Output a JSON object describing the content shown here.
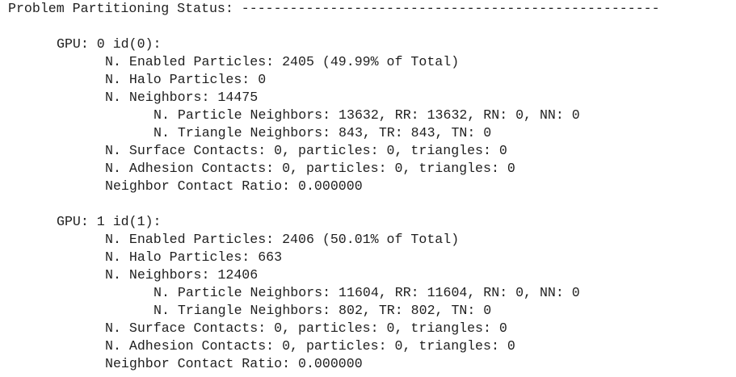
{
  "header": "Problem Partitioning Status: ----------------------------------------------------",
  "gpus": [
    {
      "label": "GPU: 0 id(0):",
      "items": [
        "N. Enabled Particles: 2405 (49.99% of Total)",
        "N. Halo Particles: 0",
        "N. Neighbors: 14475"
      ],
      "neighbor_details": [
        "N. Particle Neighbors: 13632, RR: 13632, RN: 0, NN: 0",
        "N. Triangle Neighbors: 843, TR: 843, TN: 0"
      ],
      "contacts": [
        "N. Surface Contacts: 0, particles: 0, triangles: 0",
        "N. Adhesion Contacts: 0, particles: 0, triangles: 0",
        "Neighbor Contact Ratio: 0.000000"
      ]
    },
    {
      "label": "GPU: 1 id(1):",
      "items": [
        "N. Enabled Particles: 2406 (50.01% of Total)",
        "N. Halo Particles: 663",
        "N. Neighbors: 12406"
      ],
      "neighbor_details": [
        "N. Particle Neighbors: 11604, RR: 11604, RN: 0, NN: 0",
        "N. Triangle Neighbors: 802, TR: 802, TN: 0"
      ],
      "contacts": [
        "N. Surface Contacts: 0, particles: 0, triangles: 0",
        "N. Adhesion Contacts: 0, particles: 0, triangles: 0",
        "Neighbor Contact Ratio: 0.000000"
      ]
    }
  ]
}
